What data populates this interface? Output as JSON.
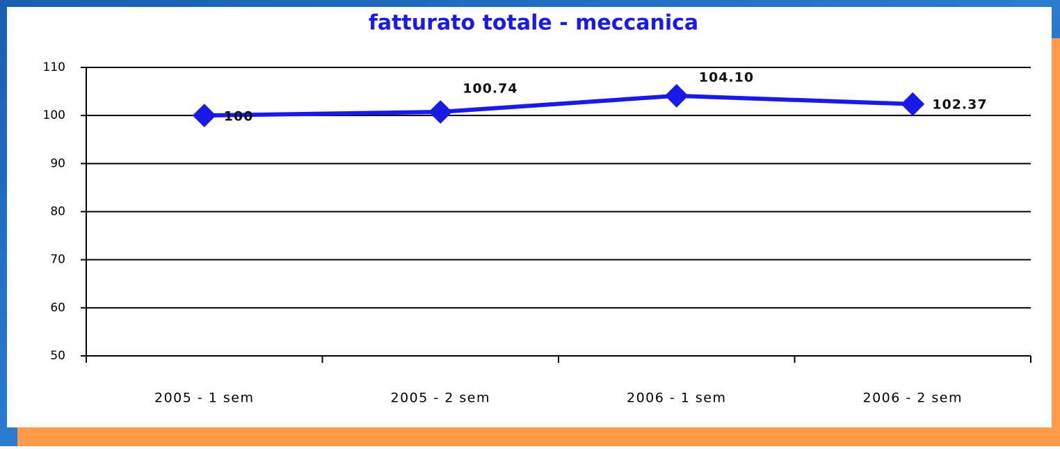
{
  "chart_data": {
    "type": "line",
    "title": "fatturato totale - meccanica",
    "categories": [
      "2005 - 1 sem",
      "2005 - 2 sem",
      "2006 - 1 sem",
      "2006 - 2 sem"
    ],
    "series": [
      {
        "name": "fatturato totale - meccanica",
        "color": "#1a1ae6",
        "values": [
          100,
          100.74,
          104.1,
          102.37
        ],
        "value_labels": [
          "100",
          "100.74",
          "104.10",
          "102.37"
        ]
      }
    ],
    "ylim": [
      50,
      110
    ],
    "yticks": [
      50,
      60,
      70,
      80,
      90,
      100,
      110
    ],
    "grid": true
  }
}
